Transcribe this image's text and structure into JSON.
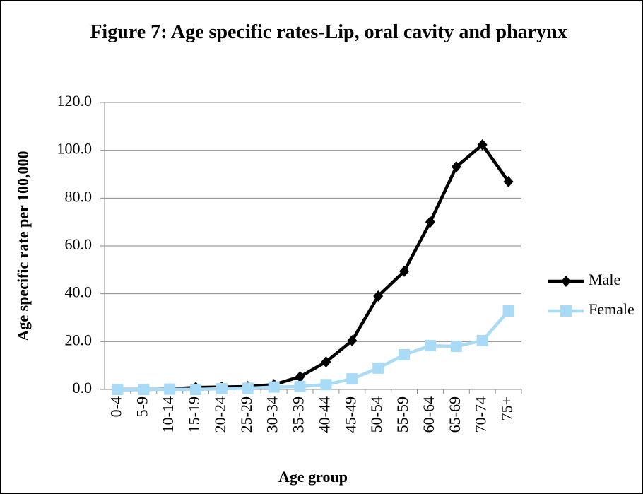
{
  "chart_data": {
    "type": "line",
    "title": "Figure 7: Age specific rates-Lip, oral cavity and pharynx",
    "x_label": "Age group",
    "y_label": "Age specific rate per 100,000",
    "categories": [
      "0-4",
      "5-9",
      "10-14",
      "15-19",
      "20-24",
      "25-29",
      "30-34",
      "35-39",
      "40-44",
      "45-49",
      "50-54",
      "55-59",
      "60-64",
      "65-69",
      "70-74",
      "75+"
    ],
    "series": [
      {
        "name": "Male",
        "color": "#000000",
        "marker": "diamond",
        "values": [
          0,
          0,
          0.2,
          0.8,
          1.0,
          1.2,
          2.0,
          5.3,
          11.5,
          20.4,
          39.0,
          49.4,
          70.0,
          93.1,
          102.3,
          86.9
        ]
      },
      {
        "name": "Female",
        "color": "#a9dbf7",
        "marker": "square",
        "values": [
          0,
          0,
          0.1,
          0,
          0.3,
          0.5,
          1.0,
          1.2,
          2.0,
          4.4,
          8.9,
          14.5,
          18.3,
          18.0,
          20.4,
          32.8
        ]
      }
    ],
    "ylim": [
      0,
      120
    ],
    "yticks": [
      {
        "value": 0,
        "label": "0.0"
      },
      {
        "value": 20,
        "label": "20.0"
      },
      {
        "value": 40,
        "label": "40.0"
      },
      {
        "value": 60,
        "label": "60.0"
      },
      {
        "value": 80,
        "label": "80.0"
      },
      {
        "value": 100,
        "label": "100.0"
      },
      {
        "value": 120,
        "label": "120.0"
      }
    ],
    "grid": true,
    "legend": "right"
  }
}
